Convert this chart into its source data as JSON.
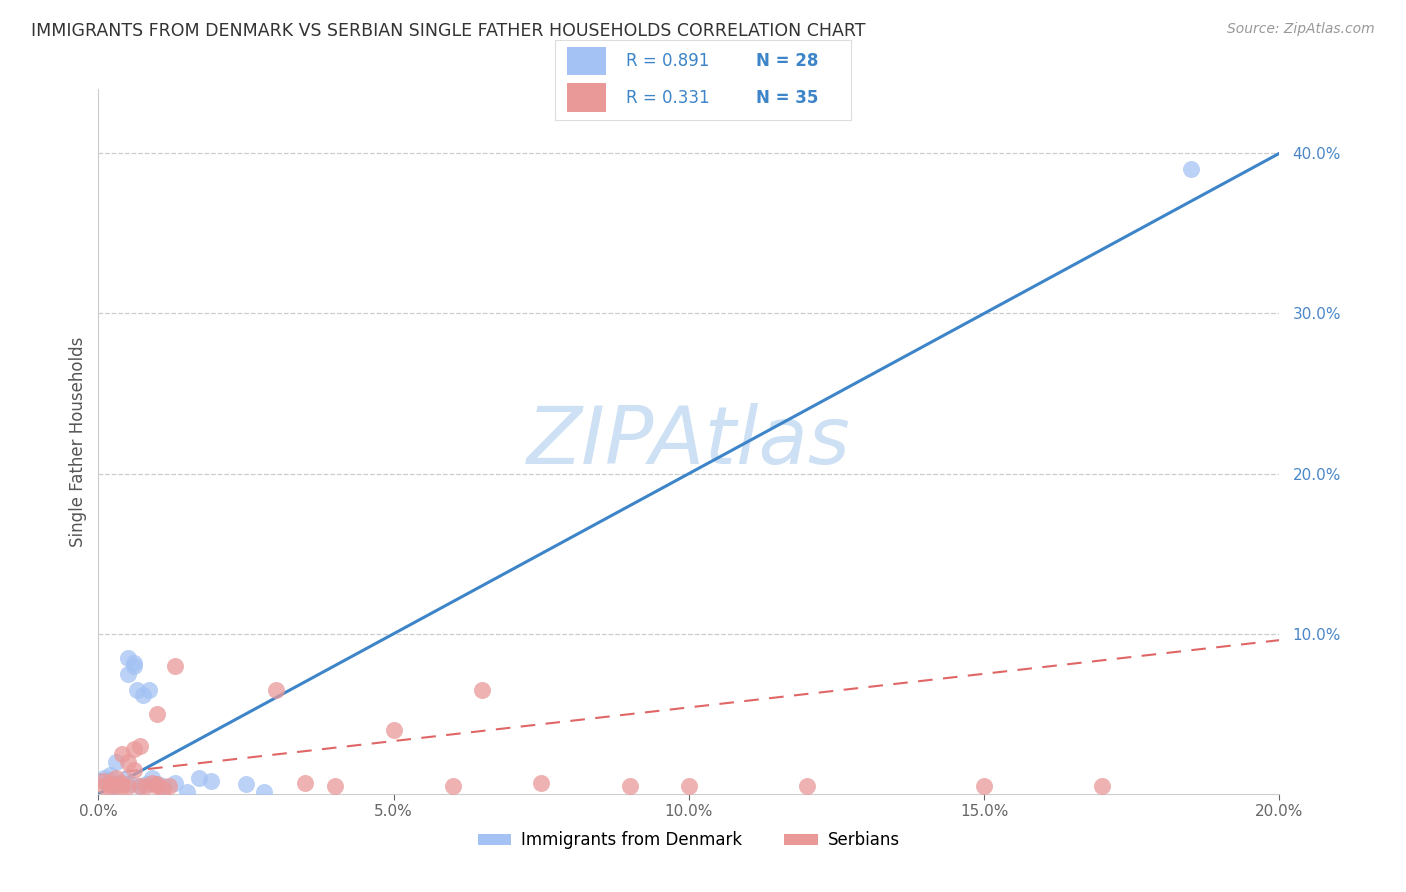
{
  "title": "IMMIGRANTS FROM DENMARK VS SERBIAN SINGLE FATHER HOUSEHOLDS CORRELATION CHART",
  "source": "Source: ZipAtlas.com",
  "ylabel": "Single Father Households",
  "watermark": "ZIPAtlas",
  "series1_name": "Immigrants from Denmark",
  "series2_name": "Serbians",
  "legend1_r": "R = 0.891",
  "legend1_n": "N = 28",
  "legend2_r": "R = 0.331",
  "legend2_n": "N = 35",
  "xlim": [
    0.0,
    0.2
  ],
  "ylim": [
    0.0,
    0.44
  ],
  "blue_scatter_color": "#a4c2f4",
  "pink_scatter_color": "#ea9999",
  "blue_line_color": "#3d85c8",
  "pink_line_color": "#e06666",
  "right_axis_label_color": "#4a86c8",
  "title_color": "#333333",
  "source_color": "#999999",
  "ylabel_color": "#555555",
  "grid_color": "#cccccc",
  "watermark_color": "#cde0f4",
  "legend_text_color": "#3d85c8",
  "legend_r_color": "#333333",
  "denmark_x": [
    0.001,
    0.0015,
    0.002,
    0.0025,
    0.003,
    0.003,
    0.004,
    0.0045,
    0.005,
    0.005,
    0.0055,
    0.006,
    0.006,
    0.0065,
    0.007,
    0.0075,
    0.008,
    0.0085,
    0.009,
    0.01,
    0.011,
    0.013,
    0.015,
    0.017,
    0.019,
    0.025,
    0.028,
    0.185
  ],
  "denmark_y": [
    0.01,
    0.007,
    0.012,
    0.005,
    0.006,
    0.02,
    0.006,
    0.009,
    0.075,
    0.085,
    0.006,
    0.08,
    0.082,
    0.065,
    0.005,
    0.062,
    0.006,
    0.065,
    0.01,
    0.006,
    0.005,
    0.007,
    0.001,
    0.01,
    0.008,
    0.006,
    0.001,
    0.39
  ],
  "serbian_x": [
    0.001,
    0.001,
    0.002,
    0.002,
    0.003,
    0.003,
    0.004,
    0.004,
    0.004,
    0.005,
    0.005,
    0.006,
    0.006,
    0.007,
    0.007,
    0.008,
    0.009,
    0.01,
    0.01,
    0.01,
    0.011,
    0.012,
    0.013,
    0.03,
    0.035,
    0.04,
    0.05,
    0.06,
    0.065,
    0.075,
    0.09,
    0.1,
    0.12,
    0.15,
    0.17
  ],
  "serbian_y": [
    0.005,
    0.008,
    0.005,
    0.007,
    0.005,
    0.01,
    0.005,
    0.007,
    0.025,
    0.005,
    0.02,
    0.028,
    0.015,
    0.005,
    0.03,
    0.005,
    0.007,
    0.005,
    0.05,
    0.006,
    0.003,
    0.005,
    0.08,
    0.065,
    0.007,
    0.005,
    0.04,
    0.005,
    0.065,
    0.007,
    0.005,
    0.005,
    0.005,
    0.005,
    0.005
  ]
}
